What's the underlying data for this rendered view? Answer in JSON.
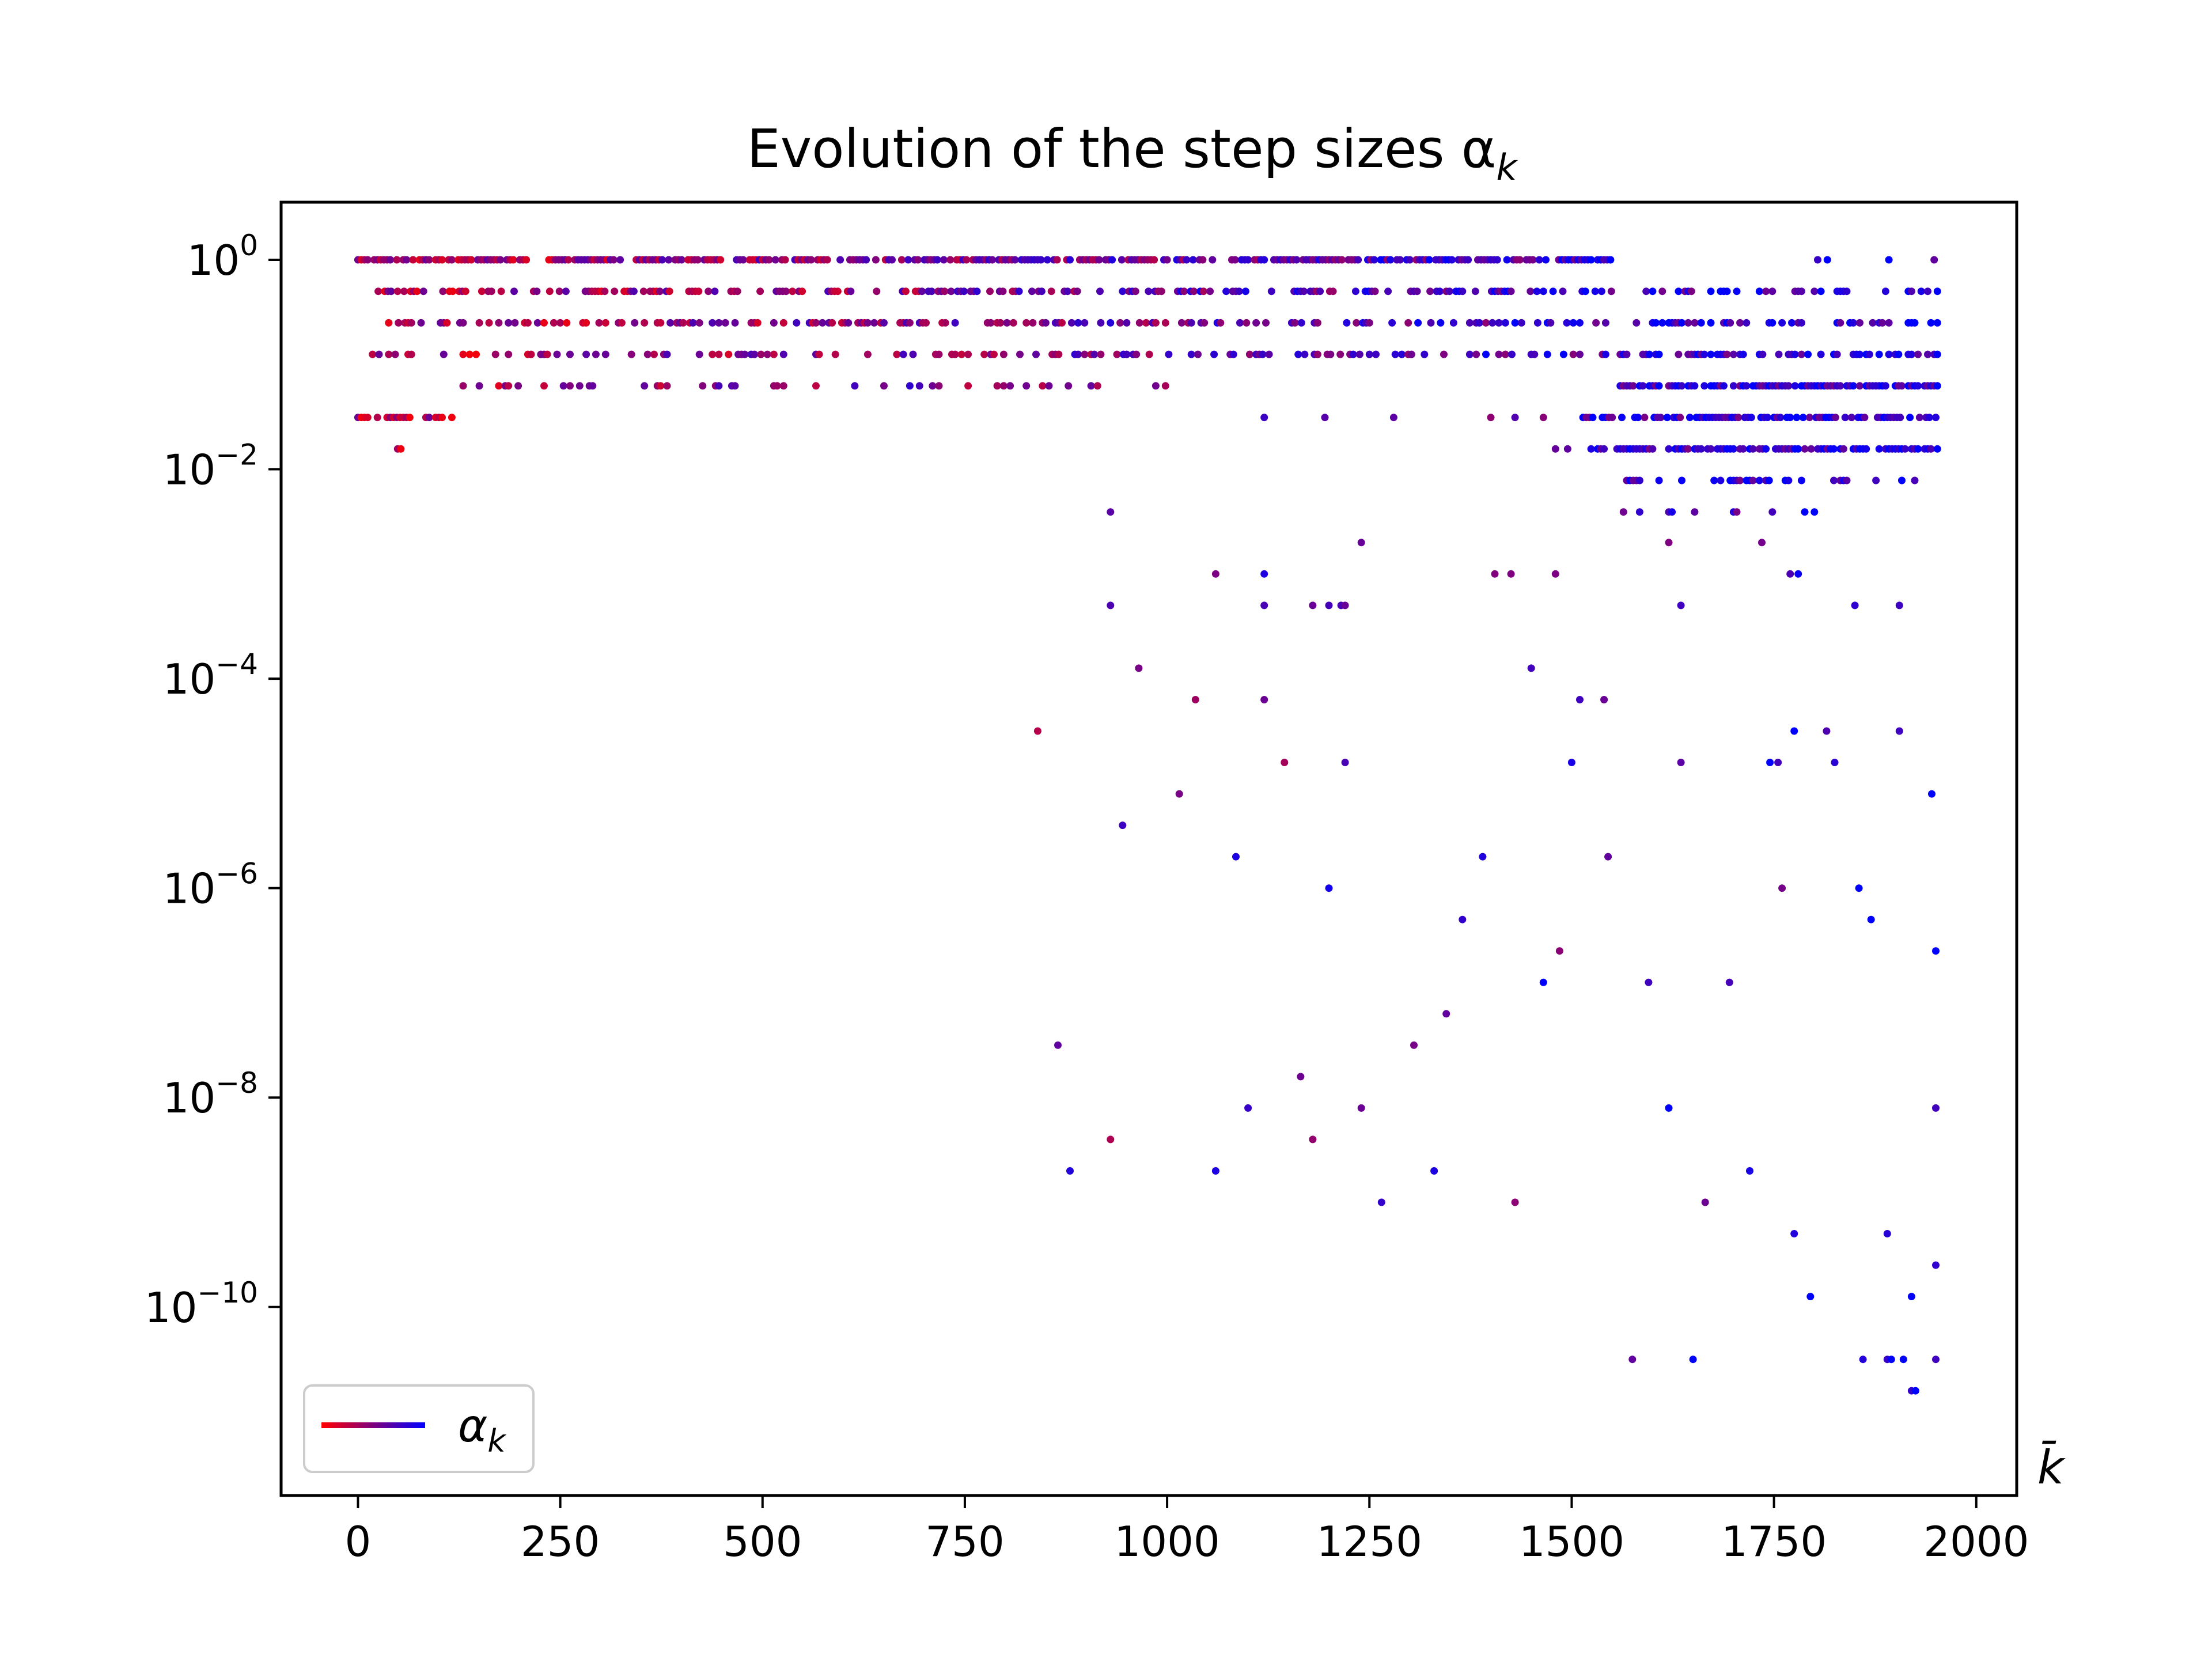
{
  "chart_data": {
    "type": "scatter",
    "title": "Evolution of the step sizes α",
    "title_subscript": "k",
    "xlabel": "k̄",
    "ylabel": "",
    "xlim": [
      -95,
      2050
    ],
    "ylim_log10": [
      -11.8,
      0.55
    ],
    "y_scale": "log",
    "grid": false,
    "x_ticks": [
      0,
      250,
      500,
      750,
      1000,
      1250,
      1500,
      1750,
      2000
    ],
    "x_tick_labels": [
      "0",
      "250",
      "500",
      "750",
      "1000",
      "1250",
      "1500",
      "1750",
      "2000"
    ],
    "y_ticks_log10": [
      0,
      -2,
      -4,
      -6,
      -8,
      -10
    ],
    "y_tick_labels": [
      {
        "base": "10",
        "exp": "0"
      },
      {
        "base": "10",
        "exp": "−2"
      },
      {
        "base": "10",
        "exp": "−4"
      },
      {
        "base": "10",
        "exp": "−6"
      },
      {
        "base": "10",
        "exp": "−8"
      },
      {
        "base": "10",
        "exp": "−10"
      }
    ],
    "legend": {
      "position": "lower-left",
      "label": "α",
      "label_subscript": "k",
      "gradient": [
        "#ff0000",
        "#0000ff"
      ]
    },
    "colors": {
      "start": "#ff0000",
      "end": "#0000ff"
    },
    "n_iterations": 1955,
    "series": [
      {
        "x_range": [
          0,
          1955
        ],
        "level_bands_log10": [
          {
            "y": 0.0,
            "x_from": 0,
            "x_to": 1550,
            "density": 0.75
          },
          {
            "y": -0.301,
            "x_from": 25,
            "x_to": 1550,
            "density": 0.45
          },
          {
            "y": -0.602,
            "x_from": 30,
            "x_to": 1550,
            "density": 0.4
          },
          {
            "y": -0.903,
            "x_from": 10,
            "x_to": 1555,
            "density": 0.3
          },
          {
            "y": -1.204,
            "x_from": 130,
            "x_to": 1020,
            "density": 0.22
          },
          {
            "y": -1.505,
            "x_from": 0,
            "x_to": 125,
            "density": 0.5
          },
          {
            "y": -1.806,
            "x_from": 45,
            "x_to": 70,
            "density": 0.3
          },
          {
            "y": 0.0,
            "x_from": 1640,
            "x_to": 1955,
            "density": 0.05
          },
          {
            "y": -0.301,
            "x_from": 1580,
            "x_to": 1955,
            "density": 0.35
          },
          {
            "y": -0.602,
            "x_from": 1580,
            "x_to": 1955,
            "density": 0.35
          },
          {
            "y": -0.903,
            "x_from": 1560,
            "x_to": 1955,
            "density": 0.45
          },
          {
            "y": -1.204,
            "x_from": 1560,
            "x_to": 1955,
            "density": 0.75
          },
          {
            "y": -1.505,
            "x_from": 1510,
            "x_to": 1955,
            "density": 0.7
          },
          {
            "y": -1.806,
            "x_from": 1520,
            "x_to": 1955,
            "density": 0.8
          },
          {
            "y": -2.107,
            "x_from": 1560,
            "x_to": 1955,
            "density": 0.3
          },
          {
            "y": -2.408,
            "x_from": 1560,
            "x_to": 1950,
            "density": 0.12
          }
        ],
        "sparse_points": [
          [
            1120,
            -1.505
          ],
          [
            1195,
            -1.505
          ],
          [
            1280,
            -1.505
          ],
          [
            1400,
            -1.505
          ],
          [
            1430,
            -1.505
          ],
          [
            1465,
            -1.505
          ],
          [
            1480,
            -1.806
          ],
          [
            1495,
            -1.806
          ],
          [
            930,
            -2.408
          ],
          [
            1240,
            -2.7
          ],
          [
            1620,
            -2.7
          ],
          [
            1735,
            -2.7
          ],
          [
            1635,
            -3.3
          ],
          [
            1060,
            -3.0
          ],
          [
            1120,
            -3.0
          ],
          [
            1405,
            -3.0
          ],
          [
            1425,
            -3.0
          ],
          [
            1480,
            -3.0
          ],
          [
            1770,
            -3.0
          ],
          [
            1780,
            -3.0
          ],
          [
            930,
            -3.3
          ],
          [
            1120,
            -3.3
          ],
          [
            1180,
            -3.3
          ],
          [
            1200,
            -3.3
          ],
          [
            1215,
            -3.3
          ],
          [
            1220,
            -3.3
          ],
          [
            1850,
            -3.3
          ],
          [
            1905,
            -3.3
          ],
          [
            965,
            -3.9
          ],
          [
            1450,
            -3.9
          ],
          [
            1035,
            -4.2
          ],
          [
            1120,
            -4.2
          ],
          [
            1510,
            -4.2
          ],
          [
            1540,
            -4.2
          ],
          [
            840,
            -4.5
          ],
          [
            1775,
            -4.5
          ],
          [
            1815,
            -4.5
          ],
          [
            1905,
            -4.5
          ],
          [
            1145,
            -4.8
          ],
          [
            1220,
            -4.8
          ],
          [
            1500,
            -4.8
          ],
          [
            1635,
            -4.8
          ],
          [
            1745,
            -4.8
          ],
          [
            1755,
            -4.8
          ],
          [
            1825,
            -4.8
          ],
          [
            1015,
            -5.1
          ],
          [
            1945,
            -5.1
          ],
          [
            945,
            -5.4
          ],
          [
            1085,
            -5.7
          ],
          [
            1390,
            -5.7
          ],
          [
            1545,
            -5.7
          ],
          [
            1200,
            -6.0
          ],
          [
            1760,
            -6.0
          ],
          [
            1855,
            -6.0
          ],
          [
            1365,
            -6.3
          ],
          [
            1870,
            -6.3
          ],
          [
            1485,
            -6.6
          ],
          [
            1950,
            -6.6
          ],
          [
            1465,
            -6.9
          ],
          [
            1595,
            -6.9
          ],
          [
            1695,
            -6.9
          ],
          [
            1345,
            -7.2
          ],
          [
            865,
            -7.5
          ],
          [
            1305,
            -7.5
          ],
          [
            1165,
            -7.8
          ],
          [
            1100,
            -8.1
          ],
          [
            1240,
            -8.1
          ],
          [
            1620,
            -8.1
          ],
          [
            1950,
            -8.1
          ],
          [
            930,
            -8.4
          ],
          [
            1180,
            -8.4
          ],
          [
            880,
            -8.7
          ],
          [
            1060,
            -8.7
          ],
          [
            1330,
            -8.7
          ],
          [
            1720,
            -8.7
          ],
          [
            1265,
            -9.0
          ],
          [
            1430,
            -9.0
          ],
          [
            1665,
            -9.0
          ],
          [
            1775,
            -9.3
          ],
          [
            1890,
            -9.3
          ],
          [
            1950,
            -9.6
          ],
          [
            1795,
            -9.9
          ],
          [
            1920,
            -9.9
          ],
          [
            1575,
            -10.5
          ],
          [
            1650,
            -10.5
          ],
          [
            1860,
            -10.5
          ],
          [
            1890,
            -10.5
          ],
          [
            1895,
            -10.5
          ],
          [
            1910,
            -10.5
          ],
          [
            1950,
            -10.5
          ],
          [
            1920,
            -10.8
          ],
          [
            1925,
            -10.8
          ]
        ]
      }
    ]
  }
}
